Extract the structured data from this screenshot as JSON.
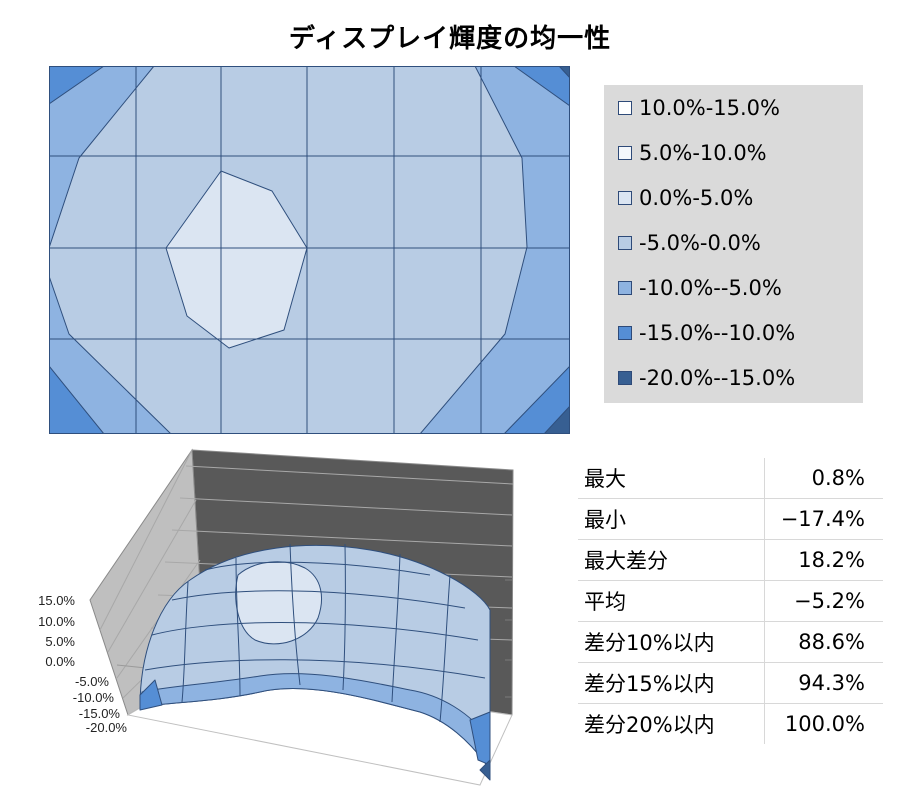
{
  "title": "ディスプレイ輝度の均一性",
  "chart_data": [
    {
      "type": "contour",
      "grid": {
        "columns": 6,
        "rows": 4
      },
      "legend_placement": "right",
      "bands": [
        {
          "label": "10.0%-15.0%",
          "color": "#ffffff"
        },
        {
          "label": "5.0%-10.0%",
          "color": "#f4f7fb"
        },
        {
          "label": "0.0%-5.0%",
          "color": "#dbe5f2"
        },
        {
          "label": "-5.0%-0.0%",
          "color": "#b8cce4"
        },
        {
          "label": "-10.0%--5.0%",
          "color": "#8eb3e1"
        },
        {
          "label": "-15.0%--10.0%",
          "color": "#558ed5"
        },
        {
          "label": "-20.0%--15.0%",
          "color": "#375f92"
        }
      ]
    },
    {
      "type": "surface",
      "zlim": [
        -20,
        15
      ],
      "z_tick_labels": [
        "15.0%",
        "10.0%",
        "5.0%",
        "0.0%",
        "-5.0%",
        "-10.0%",
        "-15.0%",
        "-20.0%"
      ]
    }
  ],
  "stats": {
    "rows": [
      {
        "label": "最大",
        "value": "0.8%"
      },
      {
        "label": "最小",
        "value": "−17.4%"
      },
      {
        "label": "最大差分",
        "value": "18.2%"
      },
      {
        "label": "平均",
        "value": "−5.2%"
      },
      {
        "label": "差分10%以内",
        "value": "88.6%"
      },
      {
        "label": "差分15%以内",
        "value": "94.3%"
      },
      {
        "label": "差分20%以内",
        "value": "100.0%"
      }
    ]
  }
}
